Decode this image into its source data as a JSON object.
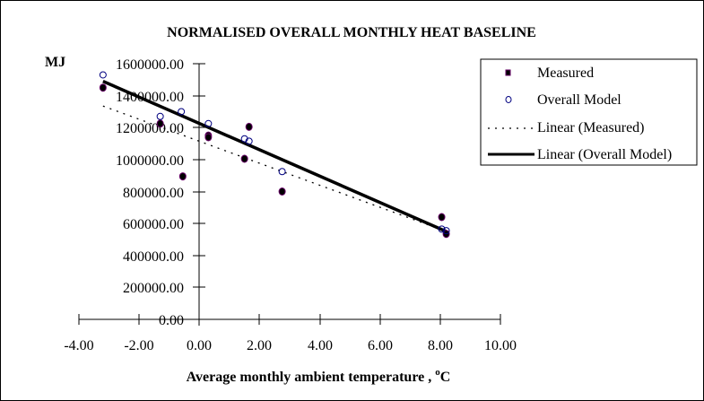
{
  "chart_data": {
    "type": "scatter",
    "title": "NORMALISED OVERALL MONTHLY  HEAT BASELINE",
    "ylabel": "MJ",
    "xlabel": "Average monthly ambient temperature , ",
    "xlabel_superscript": "o",
    "xlabel_unit": "C",
    "xlim": [
      -4,
      10
    ],
    "ylim": [
      0,
      1600000
    ],
    "x_ticks": [
      -4,
      -2,
      0,
      2,
      4,
      6,
      8,
      10
    ],
    "x_tick_labels": [
      "-4.00",
      "-2.00",
      "0.00",
      "2.00",
      "4.00",
      "6.00",
      "8.00",
      "10.00"
    ],
    "y_ticks": [
      0,
      200000,
      400000,
      600000,
      800000,
      1000000,
      1200000,
      1400000,
      1600000
    ],
    "y_tick_labels": [
      "0.00",
      "200000.00",
      "400000.00",
      "600000.00",
      "800000.00",
      "1000000.00",
      "1200000.00",
      "1400000.00",
      "1600000.00"
    ],
    "grid": false,
    "legend_position": "top-right",
    "series": [
      {
        "name": "Measured",
        "kind": "points",
        "marker": "filled-circle",
        "color": "#000000",
        "edge_color": "#660066",
        "points": [
          {
            "x": -3.2,
            "y": 1450000
          },
          {
            "x": -1.3,
            "y": 1225000
          },
          {
            "x": -0.55,
            "y": 895000
          },
          {
            "x": 0.3,
            "y": 1150000
          },
          {
            "x": 0.3,
            "y": 1140000
          },
          {
            "x": 1.5,
            "y": 1005000
          },
          {
            "x": 1.65,
            "y": 1205000
          },
          {
            "x": 2.75,
            "y": 800000
          },
          {
            "x": 8.05,
            "y": 640000
          },
          {
            "x": 8.2,
            "y": 535000
          }
        ]
      },
      {
        "name": "Overall Model",
        "kind": "points",
        "marker": "open-circle",
        "color": "#000080",
        "points": [
          {
            "x": -3.2,
            "y": 1530000
          },
          {
            "x": -1.3,
            "y": 1270000
          },
          {
            "x": -0.6,
            "y": 1300000
          },
          {
            "x": 0.3,
            "y": 1225000
          },
          {
            "x": 1.5,
            "y": 1130000
          },
          {
            "x": 1.65,
            "y": 1115000
          },
          {
            "x": 2.75,
            "y": 925000
          },
          {
            "x": 8.05,
            "y": 565000
          },
          {
            "x": 8.2,
            "y": 555000
          }
        ]
      },
      {
        "name": "Linear (Measured)",
        "kind": "trendline",
        "style": "dotted",
        "color": "#000000",
        "x": [
          -3.2,
          8.2
        ],
        "y": [
          1335000,
          550000
        ]
      },
      {
        "name": "Linear (Overall Model)",
        "kind": "trendline",
        "style": "solid",
        "color": "#000000",
        "x": [
          -3.2,
          8.2
        ],
        "y": [
          1490000,
          550000
        ]
      }
    ]
  }
}
